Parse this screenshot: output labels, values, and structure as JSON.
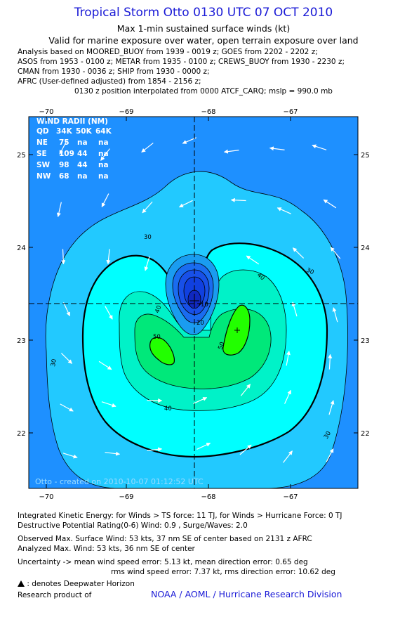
{
  "header": {
    "title": "Tropical Storm Otto 0130 UTC 07 OCT 2010",
    "subtitle1": "Max 1-min sustained surface winds (kt)",
    "subtitle2": "Valid for marine exposure over water, open terrain exposure over land",
    "analysis_lines": [
      "Analysis based on MOORED_BUOY from 1939 - 0019 z; GOES from 2202 - 2202 z;",
      "ASOS from 1953 - 0100 z; METAR from 1935 - 0100 z; CREWS_BUOY from 1930 - 2230 z;",
      "CMAN from 1930 - 0036 z; SHIP from 1930 - 0000 z;",
      "AFRC (User-defined adjusted) from 1854 - 2156 z;"
    ],
    "interpolation": "0130 z position interpolated from 0000 ATCF_CARQ; mslp = 990.0 mb"
  },
  "map": {
    "lon_ticks": [
      "−70",
      "−69",
      "−68",
      "−67"
    ],
    "lat_ticks": [
      "25",
      "24",
      "23",
      "22"
    ],
    "center": {
      "lon": -68.15,
      "lat": 23.4
    },
    "max_wind_marker": {
      "lon": -67.6,
      "lat": 23.1
    },
    "watermark": "Otto - created on 2010-10-07 01:12:52 UTC",
    "contour_labels": [
      "30",
      "30",
      "30",
      "30",
      "40",
      "40",
      "40",
      "50",
      "50",
      "10",
      "20"
    ],
    "colors": {
      "band_20_30": "#1e90ff",
      "band_30_40": "#22c9ff",
      "band_40_50": "#00ffff",
      "band_50_60": "#00e87a",
      "band_60_plus": "#22ff00",
      "core": "#1040e0"
    },
    "wind_radii": {
      "title": "WIND RADII (NM)",
      "header": [
        "QD",
        "34K",
        "50K",
        "64K"
      ],
      "rows": [
        [
          "NE",
          "75",
          "na",
          "na"
        ],
        [
          "SE",
          "109",
          "44",
          "na"
        ],
        [
          "SW",
          "98",
          "44",
          "na"
        ],
        [
          "NW",
          "68",
          "na",
          "na"
        ]
      ]
    }
  },
  "footer": {
    "ike": "Integrated Kinetic Energy:  for Winds > TS force: 11 TJ,  for Winds > Hurricane Force: 0 TJ",
    "dpr": "Destructive Potential Rating(0-6)   Wind: 0.9 , Surge/Waves: 2.0",
    "observed": "Observed Max. Surface Wind: 53 kts, 37 nm SE of center based on 2131 z AFRC",
    "analyzed": "Analyzed Max. Wind: 53 kts, 36 nm SE of center",
    "uncertainty1": "Uncertainty -> mean wind speed error: 5.13 kt,   mean direction error: 0.65 deg",
    "uncertainty2": "rms wind speed error: 7.37 kt,   rms direction error: 10.62 deg",
    "deepwater_icon": "triangle-icon",
    "deepwater": ": denotes Deepwater Horizon",
    "research": "Research product of",
    "noaa": "NOAA / AOML / Hurricane Research Division"
  }
}
